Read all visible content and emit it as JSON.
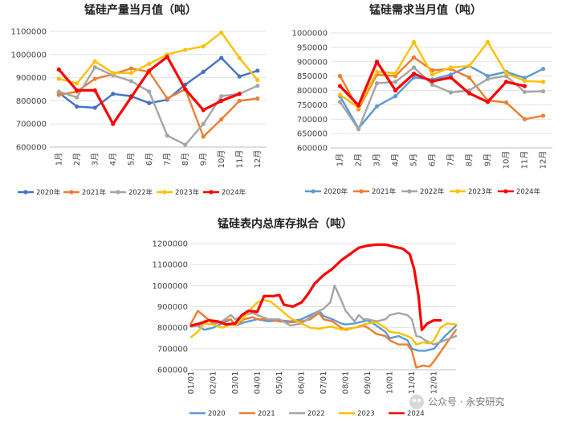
{
  "chart_data": [
    {
      "type": "line",
      "title": "锰硅产量当月值（吨）",
      "categories": [
        "1月",
        "2月",
        "3月",
        "4月",
        "5月",
        "6月",
        "7月",
        "8月",
        "9月",
        "10月",
        "11月",
        "12月"
      ],
      "ylim": [
        600000,
        1100000
      ],
      "yticks": [
        "600000",
        "700000",
        "800000",
        "900000",
        "1000000",
        "1100000"
      ],
      "grid": true,
      "legend_position": "bottom",
      "series": [
        {
          "name": "2020年",
          "color": "#4472C4",
          "values": [
            835000,
            775000,
            770000,
            830000,
            820000,
            790000,
            805000,
            870000,
            925000,
            985000,
            905000,
            930000
          ]
        },
        {
          "name": "2021年",
          "color": "#ED7D31",
          "values": [
            825000,
            840000,
            895000,
            915000,
            940000,
            925000,
            810000,
            850000,
            645000,
            720000,
            800000,
            810000
          ]
        },
        {
          "name": "2022年",
          "color": "#A5A5A5",
          "values": [
            840000,
            815000,
            945000,
            910000,
            885000,
            840000,
            650000,
            610000,
            700000,
            820000,
            830000,
            865000
          ]
        },
        {
          "name": "2023年",
          "color": "#FFC000",
          "values": [
            895000,
            875000,
            970000,
            920000,
            920000,
            960000,
            1000000,
            1020000,
            1035000,
            1095000,
            985000,
            890000
          ]
        },
        {
          "name": "2024年",
          "color": "#FF0000",
          "values": [
            935000,
            845000,
            845000,
            700000,
            815000,
            930000,
            990000,
            850000,
            760000,
            800000,
            830000,
            null
          ]
        }
      ]
    },
    {
      "type": "line",
      "title": "锰硅需求当月值（吨）",
      "categories": [
        "1月",
        "2月",
        "3月",
        "4月",
        "5月",
        "6月",
        "7月",
        "8月",
        "9月",
        "10月",
        "11月",
        "12月"
      ],
      "ylim": [
        600000,
        1000000
      ],
      "yticks": [
        "600000",
        "650000",
        "700000",
        "750000",
        "800000",
        "850000",
        "900000",
        "950000",
        "1000000"
      ],
      "grid": true,
      "legend_position": "bottom",
      "series": [
        {
          "name": "2020年",
          "color": "#5B9BD5",
          "values": [
            780000,
            668000,
            745000,
            780000,
            845000,
            838000,
            855000,
            885000,
            850000,
            865000,
            843000,
            875000
          ]
        },
        {
          "name": "2021年",
          "color": "#ED7D31",
          "values": [
            850000,
            735000,
            855000,
            850000,
            915000,
            870000,
            875000,
            845000,
            765000,
            758000,
            700000,
            712000
          ]
        },
        {
          "name": "2022年",
          "color": "#A5A5A5",
          "values": [
            760000,
            665000,
            825000,
            830000,
            880000,
            820000,
            793000,
            800000,
            840000,
            850000,
            795000,
            797000
          ]
        },
        {
          "name": "2023年",
          "color": "#FFC000",
          "values": [
            785000,
            740000,
            865000,
            860000,
            968000,
            855000,
            880000,
            885000,
            968000,
            860000,
            833000,
            830000
          ]
        },
        {
          "name": "2024年",
          "color": "#FF0000",
          "values": [
            815000,
            748000,
            900000,
            800000,
            858000,
            832000,
            845000,
            790000,
            760000,
            830000,
            815000,
            null
          ]
        }
      ]
    },
    {
      "type": "line",
      "title": "锰硅表内总库存拟合（吨）",
      "categories": [
        "01/01",
        "02/01",
        "03/01",
        "04/01",
        "05/01",
        "06/01",
        "07/01",
        "08/01",
        "09/01",
        "10/01",
        "11/01",
        "12/01"
      ],
      "ylim": [
        600000,
        1200000
      ],
      "yticks": [
        "600000",
        "700000",
        "800000",
        "900000",
        "1000000",
        "1100000",
        "1200000"
      ],
      "grid": true,
      "legend_position": "bottom",
      "series": [
        {
          "name": "2020",
          "color": "#5B9BD5",
          "values": [
            [
              0,
              810000
            ],
            [
              0.3,
              810000
            ],
            [
              0.6,
              790000
            ],
            [
              1,
              800000
            ],
            [
              1.4,
              820000
            ],
            [
              1.8,
              840000
            ],
            [
              2,
              810000
            ],
            [
              2.4,
              825000
            ],
            [
              2.8,
              835000
            ],
            [
              3,
              840000
            ],
            [
              3.5,
              830000
            ],
            [
              4,
              835000
            ],
            [
              4.5,
              830000
            ],
            [
              5,
              840000
            ],
            [
              5.4,
              860000
            ],
            [
              5.8,
              880000
            ],
            [
              6,
              855000
            ],
            [
              6.4,
              840000
            ],
            [
              6.8,
              820000
            ],
            [
              7,
              815000
            ],
            [
              7.4,
              820000
            ],
            [
              7.8,
              830000
            ],
            [
              8,
              835000
            ],
            [
              8.4,
              810000
            ],
            [
              8.8,
              780000
            ],
            [
              9,
              750000
            ],
            [
              9.4,
              760000
            ],
            [
              9.8,
              740000
            ],
            [
              10,
              700000
            ],
            [
              10.3,
              690000
            ],
            [
              10.6,
              690000
            ],
            [
              11,
              700000
            ],
            [
              11.5,
              760000
            ],
            [
              12,
              810000
            ]
          ]
        },
        {
          "name": "2021",
          "color": "#ED7D31",
          "values": [
            [
              0,
              820000
            ],
            [
              0.3,
              880000
            ],
            [
              0.6,
              855000
            ],
            [
              1,
              820000
            ],
            [
              1.4,
              830000
            ],
            [
              1.8,
              840000
            ],
            [
              2,
              810000
            ],
            [
              2.4,
              840000
            ],
            [
              2.8,
              850000
            ],
            [
              3,
              840000
            ],
            [
              3.5,
              840000
            ],
            [
              4,
              830000
            ],
            [
              4.5,
              825000
            ],
            [
              5,
              830000
            ],
            [
              5.4,
              840000
            ],
            [
              5.8,
              870000
            ],
            [
              6,
              840000
            ],
            [
              6.4,
              830000
            ],
            [
              6.8,
              800000
            ],
            [
              7,
              790000
            ],
            [
              7.4,
              800000
            ],
            [
              7.8,
              810000
            ],
            [
              8,
              800000
            ],
            [
              8.4,
              770000
            ],
            [
              8.8,
              760000
            ],
            [
              9,
              740000
            ],
            [
              9.4,
              720000
            ],
            [
              9.8,
              720000
            ],
            [
              10,
              690000
            ],
            [
              10.2,
              610000
            ],
            [
              10.5,
              620000
            ],
            [
              10.8,
              615000
            ],
            [
              11,
              640000
            ],
            [
              11.4,
              700000
            ],
            [
              11.8,
              760000
            ],
            [
              12,
              790000
            ]
          ]
        },
        {
          "name": "2022",
          "color": "#A5A5A5",
          "values": [
            [
              0,
              805000
            ],
            [
              0.3,
              810000
            ],
            [
              0.6,
              820000
            ],
            [
              1,
              815000
            ],
            [
              1.4,
              830000
            ],
            [
              1.8,
              860000
            ],
            [
              2,
              840000
            ],
            [
              2.4,
              860000
            ],
            [
              2.8,
              870000
            ],
            [
              3,
              860000
            ],
            [
              3.5,
              840000
            ],
            [
              4,
              840000
            ],
            [
              4.5,
              810000
            ],
            [
              5,
              820000
            ],
            [
              5.4,
              850000
            ],
            [
              5.8,
              880000
            ],
            [
              6,
              890000
            ],
            [
              6.3,
              920000
            ],
            [
              6.5,
              1000000
            ],
            [
              6.8,
              930000
            ],
            [
              7,
              880000
            ],
            [
              7.4,
              830000
            ],
            [
              7.6,
              860000
            ],
            [
              7.8,
              840000
            ],
            [
              8,
              840000
            ],
            [
              8.4,
              830000
            ],
            [
              8.8,
              840000
            ],
            [
              9,
              860000
            ],
            [
              9.4,
              870000
            ],
            [
              9.8,
              860000
            ],
            [
              10,
              840000
            ],
            [
              10.2,
              760000
            ],
            [
              10.4,
              755000
            ],
            [
              10.6,
              740000
            ],
            [
              11,
              720000
            ],
            [
              11.5,
              740000
            ],
            [
              12,
              760000
            ]
          ]
        },
        {
          "name": "2023",
          "color": "#FFC000",
          "values": [
            [
              0,
              755000
            ],
            [
              0.3,
              780000
            ],
            [
              0.6,
              820000
            ],
            [
              1,
              815000
            ],
            [
              1.4,
              800000
            ],
            [
              1.8,
              815000
            ],
            [
              2,
              810000
            ],
            [
              2.4,
              850000
            ],
            [
              2.8,
              900000
            ],
            [
              3,
              920000
            ],
            [
              3.3,
              930000
            ],
            [
              3.6,
              925000
            ],
            [
              4,
              890000
            ],
            [
              4.5,
              845000
            ],
            [
              5,
              820000
            ],
            [
              5.4,
              800000
            ],
            [
              5.8,
              795000
            ],
            [
              6,
              800000
            ],
            [
              6.4,
              805000
            ],
            [
              6.8,
              790000
            ],
            [
              7,
              795000
            ],
            [
              7.4,
              800000
            ],
            [
              7.8,
              815000
            ],
            [
              8,
              820000
            ],
            [
              8.4,
              825000
            ],
            [
              8.8,
              800000
            ],
            [
              9,
              780000
            ],
            [
              9.4,
              775000
            ],
            [
              9.8,
              760000
            ],
            [
              10,
              750000
            ],
            [
              10.2,
              720000
            ],
            [
              10.5,
              730000
            ],
            [
              10.8,
              725000
            ],
            [
              11,
              740000
            ],
            [
              11.3,
              800000
            ],
            [
              11.6,
              820000
            ],
            [
              12,
              815000
            ]
          ]
        },
        {
          "name": "2024",
          "color": "#FF0000",
          "values": [
            [
              0,
              810000
            ],
            [
              0.4,
              820000
            ],
            [
              0.8,
              835000
            ],
            [
              1.2,
              830000
            ],
            [
              1.6,
              815000
            ],
            [
              2,
              820000
            ],
            [
              2.3,
              860000
            ],
            [
              2.6,
              880000
            ],
            [
              3,
              875000
            ],
            [
              3.3,
              950000
            ],
            [
              3.7,
              950000
            ],
            [
              4,
              955000
            ],
            [
              4.2,
              910000
            ],
            [
              4.6,
              900000
            ],
            [
              5,
              920000
            ],
            [
              5.3,
              960000
            ],
            [
              5.6,
              1010000
            ],
            [
              6,
              1050000
            ],
            [
              6.4,
              1080000
            ],
            [
              6.8,
              1120000
            ],
            [
              7.2,
              1150000
            ],
            [
              7.6,
              1180000
            ],
            [
              8,
              1190000
            ],
            [
              8.4,
              1195000
            ],
            [
              8.8,
              1195000
            ],
            [
              9.2,
              1185000
            ],
            [
              9.6,
              1175000
            ],
            [
              9.9,
              1150000
            ],
            [
              10.1,
              1080000
            ],
            [
              10.3,
              950000
            ],
            [
              10.45,
              790000
            ],
            [
              10.7,
              820000
            ],
            [
              11,
              835000
            ],
            [
              11.3,
              835000
            ]
          ]
        }
      ]
    }
  ],
  "watermark": {
    "text": "公众号 · 永安研究"
  }
}
